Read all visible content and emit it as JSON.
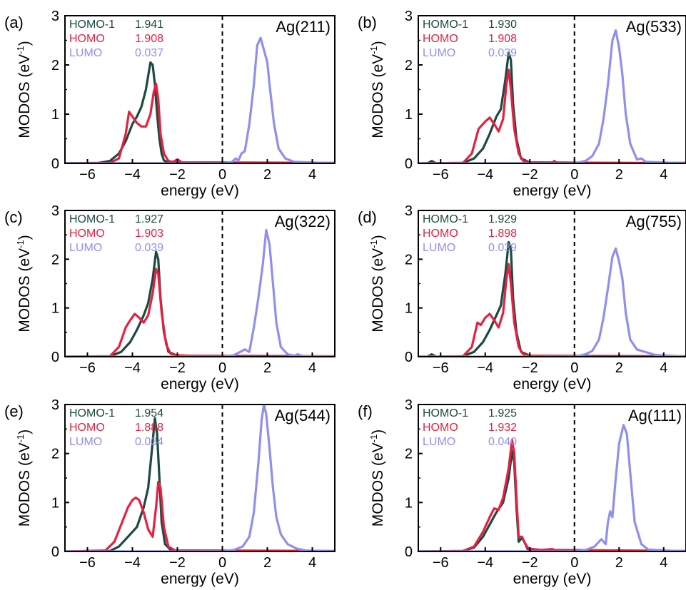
{
  "colors": {
    "homo_minus_1": "#1a4a40",
    "homo": "#e8203f",
    "lumo": "#8f8ff0",
    "axis": "#000000",
    "fermi_line": "#000000"
  },
  "chart_data": [
    {
      "type": "line",
      "panel_label": "(a)",
      "surface": "Ag(211)",
      "xlabel": "energy (eV)",
      "ylabel": "MODOS (eV",
      "ylabel_sup": "-1",
      "ylabel_close": ")",
      "xlim": [
        -7,
        5
      ],
      "ylim": [
        0,
        3
      ],
      "xticks": [
        -6,
        -4,
        -2,
        0,
        2,
        4
      ],
      "yticks": [
        0,
        1,
        2,
        3
      ],
      "fermi_line_x": 0,
      "legend": [
        {
          "name": "HOMO-1",
          "value": "1.941"
        },
        {
          "name": "HOMO",
          "value": "1.908"
        },
        {
          "name": "LUMO",
          "value": "0.037"
        }
      ],
      "series": [
        {
          "name": "HOMO-1",
          "x": [
            -7,
            -5.5,
            -5.0,
            -4.6,
            -4.3,
            -4.0,
            -3.8,
            -3.6,
            -3.4,
            -3.2,
            -3.1,
            -3.0,
            -2.9,
            -2.8,
            -2.7,
            -2.6,
            -2.4,
            -2.0,
            5
          ],
          "y": [
            0,
            0.01,
            0.05,
            0.2,
            0.45,
            0.8,
            0.95,
            1.15,
            1.5,
            2.05,
            2.0,
            1.6,
            1.0,
            0.5,
            0.2,
            0.06,
            0.02,
            0.01,
            0
          ]
        },
        {
          "name": "HOMO",
          "x": [
            -7,
            -5.0,
            -4.6,
            -4.3,
            -4.15,
            -4.0,
            -3.8,
            -3.6,
            -3.4,
            -3.2,
            -3.05,
            -2.95,
            -2.85,
            -2.75,
            -2.6,
            -2.4,
            -2.2,
            -2.0,
            -1.8,
            5
          ],
          "y": [
            0,
            0.01,
            0.1,
            0.6,
            1.05,
            0.95,
            0.82,
            0.75,
            0.75,
            1.0,
            1.45,
            1.62,
            1.3,
            0.6,
            0.2,
            0.05,
            0.03,
            0.08,
            0.02,
            0.01
          ]
        },
        {
          "name": "LUMO",
          "x": [
            -7,
            0,
            0.4,
            0.6,
            0.7,
            0.85,
            1.0,
            1.2,
            1.4,
            1.55,
            1.7,
            1.85,
            2.0,
            2.1,
            2.3,
            2.5,
            2.8,
            3.2,
            5
          ],
          "y": [
            0,
            0,
            0.02,
            0.1,
            0.05,
            0.2,
            0.25,
            0.8,
            1.6,
            2.4,
            2.55,
            2.3,
            2.05,
            1.6,
            0.8,
            0.3,
            0.1,
            0.03,
            0
          ]
        }
      ]
    },
    {
      "type": "line",
      "panel_label": "(b)",
      "surface": "Ag(533)",
      "xlabel": "energy (eV)",
      "ylabel": "MODOS (eV",
      "ylabel_sup": "-1",
      "ylabel_close": ")",
      "xlim": [
        -7,
        5
      ],
      "ylim": [
        0,
        3
      ],
      "xticks": [
        -6,
        -4,
        -2,
        0,
        2,
        4
      ],
      "yticks": [
        0,
        1,
        2,
        3
      ],
      "fermi_line_x": 0,
      "legend": [
        {
          "name": "HOMO-1",
          "value": "1.930"
        },
        {
          "name": "HOMO",
          "value": "1.908"
        },
        {
          "name": "LUMO",
          "value": "0.039"
        }
      ],
      "series": [
        {
          "name": "HOMO-1",
          "x": [
            -7,
            -6.6,
            -6.4,
            -6.2,
            -5.0,
            -4.5,
            -4.1,
            -3.8,
            -3.5,
            -3.3,
            -3.1,
            -2.95,
            -2.85,
            -2.75,
            -2.6,
            -2.4,
            -2.0,
            5
          ],
          "y": [
            0,
            0,
            0.05,
            0,
            0.01,
            0.1,
            0.3,
            0.6,
            0.95,
            1.1,
            1.7,
            2.25,
            2.1,
            1.2,
            0.5,
            0.1,
            0.02,
            0
          ]
        },
        {
          "name": "HOMO",
          "x": [
            -7,
            -5.0,
            -4.6,
            -4.3,
            -4.0,
            -3.8,
            -3.6,
            -3.4,
            -3.2,
            -3.05,
            -2.95,
            -2.85,
            -2.7,
            -2.5,
            -2.3,
            -2.0,
            -1.0,
            -0.9,
            -0.8,
            5
          ],
          "y": [
            0,
            0.01,
            0.2,
            0.7,
            0.85,
            0.93,
            0.8,
            0.65,
            0.9,
            1.6,
            1.9,
            1.5,
            0.7,
            0.2,
            0.05,
            0.02,
            0.01,
            0.05,
            0.01,
            0.01
          ]
        },
        {
          "name": "LUMO",
          "x": [
            -7,
            0,
            0.5,
            0.8,
            1.1,
            1.3,
            1.5,
            1.7,
            1.85,
            2.0,
            2.15,
            2.3,
            2.5,
            2.8,
            3.0,
            3.2,
            5
          ],
          "y": [
            0,
            0,
            0.05,
            0.15,
            0.4,
            0.9,
            1.6,
            2.5,
            2.7,
            2.35,
            1.8,
            1.0,
            0.4,
            0.08,
            0.1,
            0.03,
            0
          ]
        }
      ]
    },
    {
      "type": "line",
      "panel_label": "(c)",
      "surface": "Ag(322)",
      "xlabel": "energy (eV)",
      "ylabel": "MODOS (eV",
      "ylabel_sup": "-1",
      "ylabel_close": ")",
      "xlim": [
        -7,
        5
      ],
      "ylim": [
        0,
        3
      ],
      "xticks": [
        -6,
        -4,
        -2,
        0,
        2,
        4
      ],
      "yticks": [
        0,
        1,
        2,
        3
      ],
      "fermi_line_x": 0,
      "legend": [
        {
          "name": "HOMO-1",
          "value": "1.927"
        },
        {
          "name": "HOMO",
          "value": "1.903"
        },
        {
          "name": "LUMO",
          "value": "0.039"
        }
      ],
      "series": [
        {
          "name": "HOMO-1",
          "x": [
            -7,
            -5.0,
            -4.5,
            -4.1,
            -3.8,
            -3.5,
            -3.3,
            -3.1,
            -2.95,
            -2.85,
            -2.75,
            -2.6,
            -2.4,
            -2.0,
            5
          ],
          "y": [
            0,
            0.01,
            0.1,
            0.3,
            0.55,
            0.85,
            1.1,
            1.6,
            2.15,
            2.0,
            1.2,
            0.5,
            0.1,
            0.02,
            0
          ]
        },
        {
          "name": "HOMO",
          "x": [
            -7,
            -5.0,
            -4.6,
            -4.3,
            -4.1,
            -3.9,
            -3.7,
            -3.5,
            -3.3,
            -3.1,
            -2.95,
            -2.85,
            -2.7,
            -2.5,
            -2.3,
            -2.0,
            -1.5,
            5
          ],
          "y": [
            0,
            0.01,
            0.2,
            0.6,
            0.75,
            0.88,
            0.8,
            0.7,
            0.85,
            1.3,
            1.8,
            1.7,
            0.9,
            0.25,
            0.06,
            0.03,
            0.02,
            0.01
          ]
        },
        {
          "name": "LUMO",
          "x": [
            -7,
            0,
            0.5,
            0.8,
            1.0,
            1.2,
            1.4,
            1.6,
            1.8,
            1.95,
            2.1,
            2.25,
            2.4,
            2.6,
            2.9,
            3.2,
            3.35,
            3.6,
            5
          ],
          "y": [
            0,
            0,
            0.03,
            0.1,
            0.15,
            0.1,
            0.6,
            1.2,
            1.9,
            2.6,
            2.3,
            1.5,
            0.7,
            0.2,
            0.05,
            0.02,
            0.05,
            0.01,
            0
          ]
        }
      ]
    },
    {
      "type": "line",
      "panel_label": "(d)",
      "surface": "Ag(755)",
      "xlabel": "energy (eV)",
      "ylabel": "MODOS (eV",
      "ylabel_sup": "-1",
      "ylabel_close": ")",
      "xlim": [
        -7,
        5
      ],
      "ylim": [
        0,
        3
      ],
      "xticks": [
        -6,
        -4,
        -2,
        0,
        2,
        4
      ],
      "yticks": [
        0,
        1,
        2,
        3
      ],
      "fermi_line_x": 0,
      "legend": [
        {
          "name": "HOMO-1",
          "value": "1.929"
        },
        {
          "name": "HOMO",
          "value": "1.898"
        },
        {
          "name": "LUMO",
          "value": "0.039"
        }
      ],
      "series": [
        {
          "name": "HOMO-1",
          "x": [
            -7,
            -6.6,
            -6.4,
            -6.2,
            -5.0,
            -4.5,
            -4.1,
            -3.8,
            -3.5,
            -3.3,
            -3.1,
            -2.95,
            -2.85,
            -2.75,
            -2.6,
            -2.4,
            -2.0,
            5
          ],
          "y": [
            0,
            0,
            0.05,
            0,
            0.01,
            0.1,
            0.3,
            0.55,
            0.85,
            1.05,
            1.7,
            2.35,
            2.2,
            1.2,
            0.5,
            0.1,
            0.02,
            0
          ]
        },
        {
          "name": "HOMO",
          "x": [
            -7,
            -5.0,
            -4.6,
            -4.35,
            -4.2,
            -4.0,
            -3.8,
            -3.6,
            -3.4,
            -3.2,
            -3.05,
            -2.95,
            -2.85,
            -2.7,
            -2.5,
            -2.3,
            -2.0,
            5
          ],
          "y": [
            0,
            0.01,
            0.2,
            0.7,
            0.65,
            0.8,
            0.88,
            0.75,
            0.6,
            0.9,
            1.6,
            1.9,
            1.5,
            0.7,
            0.2,
            0.05,
            0.02,
            0.01
          ]
        },
        {
          "name": "LUMO",
          "x": [
            -7,
            0,
            0.5,
            0.8,
            1.1,
            1.3,
            1.5,
            1.7,
            1.85,
            2.0,
            2.15,
            2.3,
            2.5,
            2.8,
            3.0,
            3.3,
            3.6,
            5
          ],
          "y": [
            0,
            0,
            0.05,
            0.12,
            0.35,
            0.8,
            1.4,
            2.05,
            2.22,
            1.95,
            1.6,
            0.9,
            0.35,
            0.15,
            0.12,
            0.08,
            0.04,
            0
          ]
        }
      ]
    },
    {
      "type": "line",
      "panel_label": "(e)",
      "surface": "Ag(544)",
      "xlabel": "energy (eV)",
      "ylabel": "MODOS (eV",
      "ylabel_sup": "-1",
      "ylabel_close": ")",
      "xlim": [
        -7,
        5
      ],
      "ylim": [
        0,
        3
      ],
      "xticks": [
        -6,
        -4,
        -2,
        0,
        2,
        4
      ],
      "yticks": [
        0,
        1,
        2,
        3
      ],
      "fermi_line_x": 0,
      "legend": [
        {
          "name": "HOMO-1",
          "value": "1.954"
        },
        {
          "name": "HOMO",
          "value": "1.888"
        },
        {
          "name": "LUMO",
          "value": "0.034"
        }
      ],
      "series": [
        {
          "name": "HOMO-1",
          "x": [
            -7,
            -5.0,
            -4.6,
            -4.2,
            -3.8,
            -3.5,
            -3.3,
            -3.15,
            -3.0,
            -2.9,
            -2.8,
            -2.7,
            -2.55,
            -2.3,
            -2.0,
            5
          ],
          "y": [
            0,
            0.01,
            0.1,
            0.3,
            0.5,
            0.9,
            1.3,
            2.0,
            2.72,
            2.4,
            1.5,
            0.6,
            0.15,
            0.03,
            0.01,
            0
          ]
        },
        {
          "name": "HOMO",
          "x": [
            -7,
            -5.2,
            -4.8,
            -4.5,
            -4.2,
            -4.0,
            -3.85,
            -3.7,
            -3.5,
            -3.3,
            -3.1,
            -2.95,
            -2.85,
            -2.75,
            -2.6,
            -2.4,
            -2.1,
            -1.5,
            5
          ],
          "y": [
            0,
            0.02,
            0.2,
            0.55,
            0.9,
            1.05,
            1.1,
            1.05,
            0.8,
            0.45,
            0.3,
            0.9,
            1.42,
            1.3,
            0.5,
            0.1,
            0.02,
            0.02,
            0.01
          ]
        },
        {
          "name": "LUMO",
          "x": [
            -7,
            0,
            0.5,
            0.9,
            1.2,
            1.4,
            1.6,
            1.75,
            1.85,
            1.95,
            2.1,
            2.25,
            2.4,
            2.6,
            2.9,
            3.3,
            3.7,
            5
          ],
          "y": [
            0,
            0,
            0.03,
            0.1,
            0.3,
            0.8,
            1.8,
            2.7,
            3.0,
            2.8,
            2.1,
            1.3,
            0.7,
            0.35,
            0.15,
            0.06,
            0.02,
            0
          ]
        }
      ]
    },
    {
      "type": "line",
      "panel_label": "(f)",
      "surface": "Ag(111)",
      "xlabel": "energy (eV)",
      "ylabel": "MODOS (eV",
      "ylabel_sup": "-1",
      "ylabel_close": ")",
      "xlim": [
        -7,
        5
      ],
      "ylim": [
        0,
        3
      ],
      "xticks": [
        -6,
        -4,
        -2,
        0,
        2,
        4
      ],
      "yticks": [
        0,
        1,
        2,
        3
      ],
      "fermi_line_x": 0,
      "legend": [
        {
          "name": "HOMO-1",
          "value": "1.925"
        },
        {
          "name": "HOMO",
          "value": "1.932"
        },
        {
          "name": "LUMO",
          "value": "0.040"
        }
      ],
      "series": [
        {
          "name": "HOMO-1",
          "x": [
            -7,
            -5.0,
            -4.5,
            -4.1,
            -3.8,
            -3.5,
            -3.2,
            -2.95,
            -2.8,
            -2.7,
            -2.6,
            -2.5,
            -2.35,
            -2.25,
            -2.1,
            -1.8,
            5
          ],
          "y": [
            0,
            0.01,
            0.08,
            0.3,
            0.55,
            0.8,
            1.0,
            1.5,
            2.05,
            1.8,
            0.9,
            0.2,
            0.28,
            0.2,
            0.05,
            0.02,
            0
          ]
        },
        {
          "name": "HOMO",
          "x": [
            -7,
            -5.0,
            -4.5,
            -4.1,
            -3.8,
            -3.6,
            -3.4,
            -3.2,
            -2.95,
            -2.8,
            -2.7,
            -2.6,
            -2.5,
            -2.35,
            -2.25,
            -2.1,
            -1.9,
            -1.5,
            -1.0,
            -0.9,
            5
          ],
          "y": [
            0,
            0.01,
            0.1,
            0.4,
            0.7,
            0.88,
            0.85,
            1.1,
            1.7,
            2.28,
            2.0,
            1.1,
            0.3,
            0.3,
            0.2,
            0.08,
            0.05,
            0.03,
            0.05,
            0.03,
            0.01
          ]
        },
        {
          "name": "LUMO",
          "x": [
            -7,
            0,
            0.5,
            0.9,
            1.2,
            1.4,
            1.5,
            1.6,
            1.7,
            1.85,
            2.0,
            2.2,
            2.35,
            2.5,
            2.7,
            3.0,
            3.3,
            5
          ],
          "y": [
            0,
            0,
            0.03,
            0.1,
            0.25,
            0.15,
            0.6,
            0.82,
            0.7,
            1.5,
            2.2,
            2.58,
            2.4,
            1.6,
            0.6,
            0.15,
            0.04,
            0
          ]
        }
      ]
    }
  ]
}
